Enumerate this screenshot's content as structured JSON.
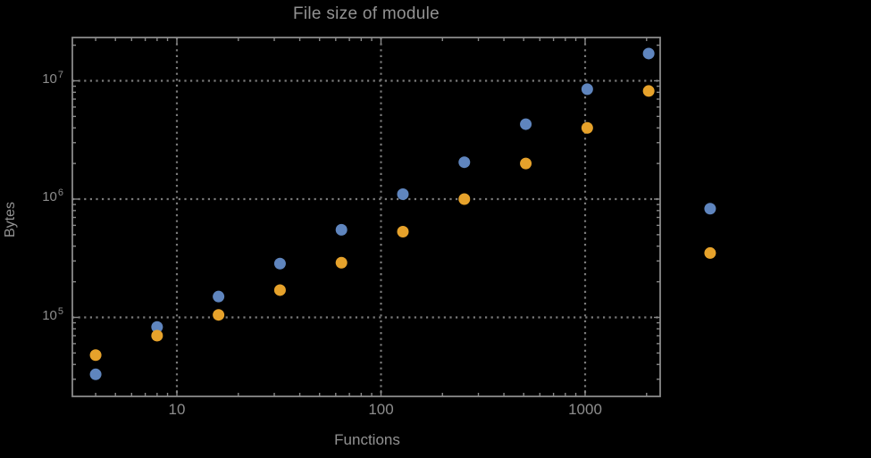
{
  "title": "File size of module",
  "colors": {
    "background": "#000000",
    "frame": "#8a8a8a",
    "gridline": "#7a7a7a",
    "text": "#929292",
    "series_blue": "#5F85BE",
    "series_orange": "#E6A22B"
  },
  "chart_data": {
    "type": "scatter",
    "title": "File size of module",
    "xlabel": "Functions",
    "ylabel": "Bytes",
    "x_scale": "log",
    "y_scale": "log",
    "x_range": [
      3.1,
      2330
    ],
    "y_range": [
      21000,
      23000000
    ],
    "grid": "dotted lines at decade ticks, grid on",
    "legend": "none",
    "marker_radius_px": 6.5,
    "x_major_ticks": [
      {
        "value": 10,
        "label": "10"
      },
      {
        "value": 100,
        "label": "100"
      },
      {
        "value": 1000,
        "label": "1000"
      }
    ],
    "y_major_ticks": [
      {
        "value": 100000,
        "base": "10",
        "exp": "5"
      },
      {
        "value": 1000000,
        "base": "10",
        "exp": "6"
      },
      {
        "value": 10000000,
        "base": "10",
        "exp": "7"
      }
    ],
    "x_minor_ticks": [
      4,
      5,
      6,
      7,
      8,
      9,
      20,
      30,
      40,
      50,
      60,
      70,
      80,
      90,
      200,
      300,
      400,
      500,
      600,
      700,
      800,
      900,
      2000
    ],
    "y_minor_ticks": [
      30000,
      40000,
      50000,
      60000,
      70000,
      80000,
      90000,
      200000,
      300000,
      400000,
      500000,
      600000,
      700000,
      800000,
      900000,
      2000000,
      3000000,
      4000000,
      5000000,
      6000000,
      7000000,
      8000000,
      9000000,
      20000000
    ],
    "series": [
      {
        "name": "series-1-blue",
        "color": "#5F85BE",
        "marker": "circle",
        "points": [
          [
            4,
            33000
          ],
          [
            8,
            83000
          ],
          [
            16,
            150000
          ],
          [
            32,
            285000
          ],
          [
            64,
            550000
          ],
          [
            128,
            1100000
          ],
          [
            256,
            2050000
          ],
          [
            512,
            4300000
          ],
          [
            1024,
            8500000
          ],
          [
            2048,
            17000000
          ],
          [
            4096,
            830000
          ]
        ]
      },
      {
        "name": "series-2-orange",
        "color": "#E6A22B",
        "marker": "circle",
        "points": [
          [
            4,
            48000
          ],
          [
            8,
            70000
          ],
          [
            16,
            105000
          ],
          [
            32,
            170000
          ],
          [
            64,
            290000
          ],
          [
            128,
            530000
          ],
          [
            256,
            1000000
          ],
          [
            512,
            2000000
          ],
          [
            1024,
            4000000
          ],
          [
            2048,
            8200000
          ],
          [
            4096,
            350000
          ]
        ]
      }
    ]
  }
}
